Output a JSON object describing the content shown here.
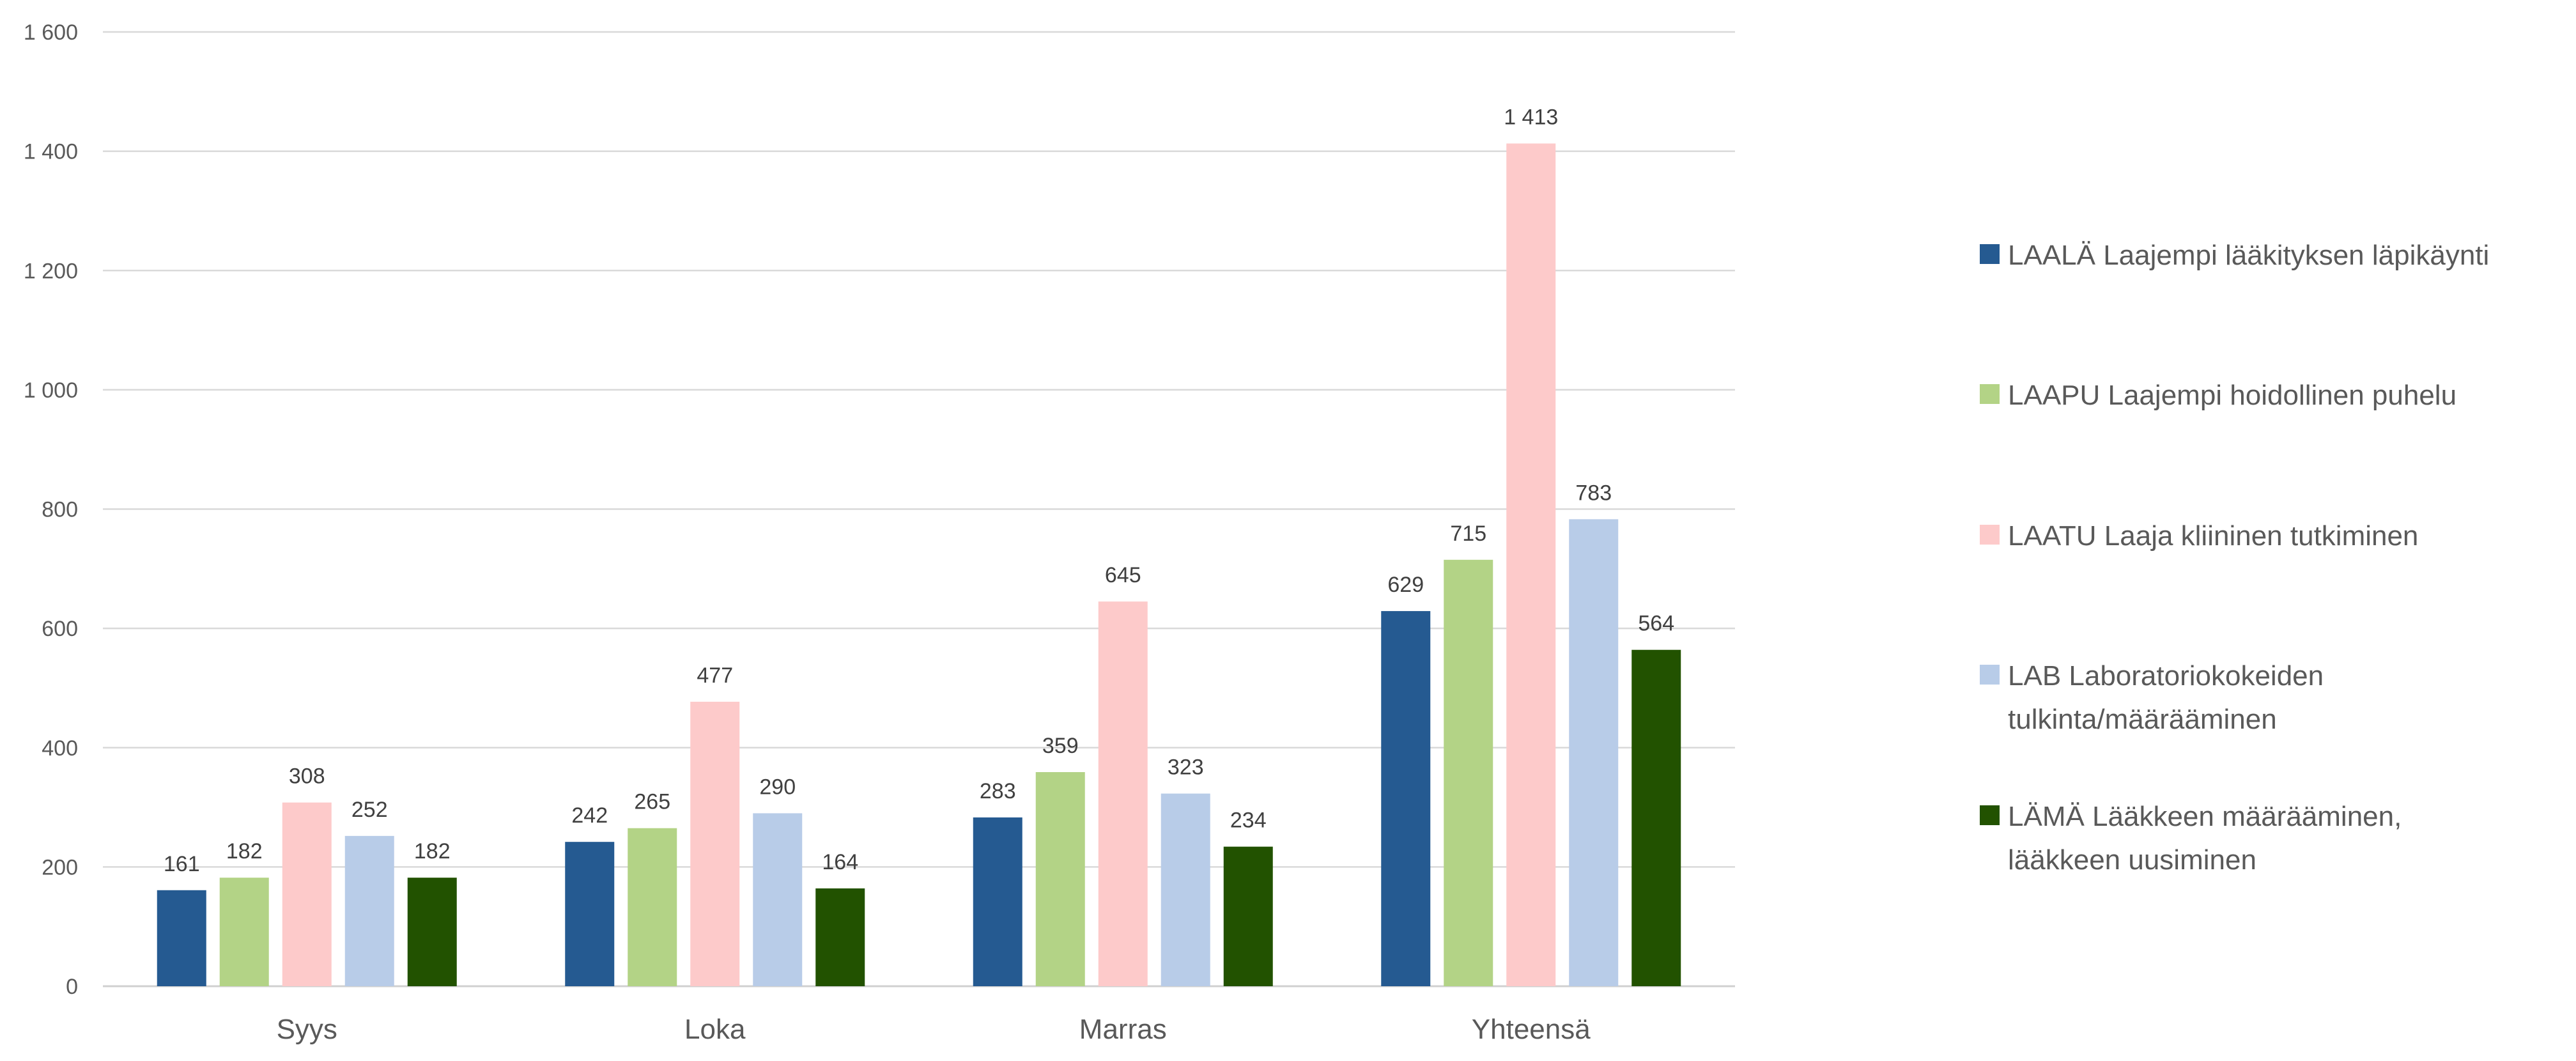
{
  "chart_data": {
    "type": "bar",
    "categories": [
      "Syys",
      "Loka",
      "Marras",
      "Yhteensä"
    ],
    "series": [
      {
        "name": "LAALÄ Laajempi lääkityksen läpikäynti",
        "name_lines": [
          "LAALÄ Laajempi lääkityksen läpikäynti"
        ],
        "color": "#255A91",
        "values": [
          161,
          242,
          283,
          629
        ],
        "labels": [
          "161",
          "242",
          "283",
          "629"
        ]
      },
      {
        "name": "LAAPU Laajempi hoidollinen puhelu",
        "name_lines": [
          "LAAPU Laajempi hoidollinen puhelu"
        ],
        "color": "#B3D386",
        "values": [
          182,
          265,
          359,
          715
        ],
        "labels": [
          "182",
          "265",
          "359",
          "715"
        ]
      },
      {
        "name": "LAATU Laaja kliininen tutkiminen",
        "name_lines": [
          "LAATU Laaja kliininen tutkiminen"
        ],
        "color": "#FDCACA",
        "values": [
          308,
          477,
          645,
          1413
        ],
        "labels": [
          "308",
          "477",
          "645",
          "1 413"
        ]
      },
      {
        "name": "LAB Laboratoriokokeiden tulkinta/määrääminen",
        "name_lines": [
          "LAB Laboratoriokokeiden",
          "tulkinta/määrääminen"
        ],
        "color": "#B8CCE8",
        "values": [
          252,
          290,
          323,
          783
        ],
        "labels": [
          "252",
          "290",
          "323",
          "783"
        ]
      },
      {
        "name": "LÄMÄ Lääkkeen määrääminen, lääkkeen uusiminen",
        "name_lines": [
          "LÄMÄ Lääkkeen määrääminen,",
          "lääkkeen uusiminen"
        ],
        "color": "#225200",
        "values": [
          182,
          164,
          234,
          564
        ],
        "labels": [
          "182",
          "164",
          "234",
          "564"
        ]
      }
    ],
    "yticks": [
      0,
      200,
      400,
      600,
      800,
      1000,
      1200,
      1400,
      1600
    ],
    "ytick_labels": [
      "0",
      "200",
      "400",
      "600",
      "800",
      "1 000",
      "1 200",
      "1 400",
      "1 600"
    ],
    "ylim": [
      0,
      1600
    ],
    "grid": true,
    "legend": "right",
    "title": "",
    "xlabel": "",
    "ylabel": ""
  }
}
